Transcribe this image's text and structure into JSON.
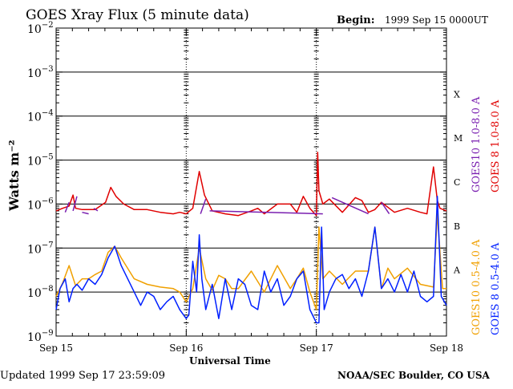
{
  "header": {
    "title": "GOES Xray Flux (5 minute data)",
    "begin_label": "Begin:",
    "begin_value": "1999 Sep 15 0000UT"
  },
  "footer": {
    "updated": "Updated 1999 Sep 17 23:59:09",
    "credit": "NOAA/SEC Boulder, CO USA"
  },
  "chart_data": {
    "type": "line",
    "title": "GOES Xray Flux (5 minute data)",
    "xlabel": "Universal Time",
    "ylabel": "Watts m⁻²",
    "yscale": "log",
    "ylim": [
      1e-09,
      0.01
    ],
    "xlim_days": [
      0,
      3
    ],
    "x_ticks": [
      "Sep 15",
      "Sep 16",
      "Sep 17",
      "Sep 18"
    ],
    "y_ticks": [
      {
        "base": "10",
        "exp": "−2"
      },
      {
        "base": "10",
        "exp": "−3"
      },
      {
        "base": "10",
        "exp": "−4"
      },
      {
        "base": "10",
        "exp": "−5"
      },
      {
        "base": "10",
        "exp": "−6"
      },
      {
        "base": "10",
        "exp": "−7"
      },
      {
        "base": "10",
        "exp": "−8"
      },
      {
        "base": "10",
        "exp": "−9"
      }
    ],
    "flare_classes": [
      "X",
      "M",
      "C",
      "B",
      "A"
    ],
    "grid": true,
    "colors": {
      "g10_long": "#7a1fb0",
      "g8_long": "#e00000",
      "g10_short": "#f0a000",
      "g8_short": "#0020ff"
    },
    "series": [
      {
        "name": "GOES10 1.0-8.0 A",
        "key": "g10_long",
        "x": [
          0.07,
          0.1,
          0.13,
          0.16,
          0.2,
          0.25,
          0.29,
          0.32,
          1.11,
          1.15,
          1.18,
          2.05,
          2.12,
          2.4,
          2.5,
          2.56
        ],
        "y": [
          6.5e-07,
          1.1e-06,
          7e-07,
          1.5e-06,
          6.5e-07,
          6e-07,
          8e-07,
          7e-07,
          6e-07,
          1.3e-06,
          7e-07,
          6e-07,
          1.4e-06,
          6e-07,
          1.1e-06,
          6e-07
        ]
      },
      {
        "name": "GOES 8 1.0-8.0 A",
        "key": "g8_long",
        "x": [
          0,
          0.05,
          0.1,
          0.13,
          0.15,
          0.2,
          0.3,
          0.38,
          0.42,
          0.46,
          0.52,
          0.6,
          0.7,
          0.8,
          0.9,
          0.95,
          1.0,
          1.05,
          1.1,
          1.14,
          1.2,
          1.3,
          1.4,
          1.5,
          1.55,
          1.6,
          1.7,
          1.8,
          1.85,
          1.9,
          1.95,
          2.0,
          2.01,
          2.02,
          2.05,
          2.1,
          2.2,
          2.3,
          2.35,
          2.4,
          2.45,
          2.5,
          2.6,
          2.7,
          2.8,
          2.85,
          2.9,
          2.93,
          2.95,
          3.0
        ],
        "y": [
          7e-07,
          8e-07,
          9e-07,
          1.6e-06,
          8e-07,
          7.5e-07,
          7.5e-07,
          1.1e-06,
          2.4e-06,
          1.5e-06,
          1e-06,
          7.5e-07,
          7.5e-07,
          6.5e-07,
          6e-07,
          6.5e-07,
          6e-07,
          8e-07,
          5.5e-06,
          1.6e-06,
          7e-07,
          6e-07,
          5.5e-07,
          7e-07,
          8e-07,
          6e-07,
          1e-06,
          1e-06,
          6.5e-07,
          1.5e-06,
          8e-07,
          5.5e-07,
          1.5e-05,
          2e-06,
          1e-06,
          1.3e-06,
          6.5e-07,
          1.4e-06,
          1.2e-06,
          6.5e-07,
          7.5e-07,
          1.1e-06,
          6.5e-07,
          8e-07,
          6.5e-07,
          6e-07,
          7e-06,
          1.2e-06,
          8e-07,
          7e-07
        ]
      },
      {
        "name": "GOES10 0.5-4.0 A",
        "key": "g10_short",
        "x": [
          0,
          0.05,
          0.1,
          0.15,
          0.2,
          0.25,
          0.3,
          0.35,
          0.4,
          0.45,
          0.5,
          0.6,
          0.7,
          0.8,
          0.9,
          0.95,
          1.0,
          1.05,
          1.1,
          1.15,
          1.2,
          1.25,
          1.3,
          1.35,
          1.4,
          1.5,
          1.6,
          1.7,
          1.8,
          1.85,
          1.9,
          1.95,
          2.0,
          2.02,
          2.05,
          2.1,
          2.2,
          2.3,
          2.4,
          2.45,
          2.5,
          2.55,
          2.6,
          2.7,
          2.8,
          2.9,
          2.93,
          2.97,
          3.0
        ],
        "y": [
          8e-09,
          1.6e-08,
          4e-08,
          1.4e-08,
          2e-08,
          2e-08,
          2.5e-08,
          3e-08,
          8e-08,
          1.1e-07,
          6e-08,
          2e-08,
          1.5e-08,
          1.3e-08,
          1.2e-08,
          1e-08,
          6e-09,
          1.2e-08,
          1e-07,
          2e-08,
          1.1e-08,
          2.4e-08,
          2e-08,
          1.2e-08,
          1.2e-08,
          3e-08,
          1e-08,
          4e-08,
          1.2e-08,
          2e-08,
          3.5e-08,
          1e-08,
          4e-09,
          3e-07,
          2e-08,
          3e-08,
          1.5e-08,
          3e-08,
          3e-08,
          3e-07,
          1.2e-08,
          3.5e-08,
          2e-08,
          3.5e-08,
          1.5e-08,
          1.3e-08,
          6e-07,
          1.2e-08,
          1.2e-08
        ]
      },
      {
        "name": "GOES 8 0.5-4.0 A",
        "key": "g8_short",
        "x": [
          0,
          0.03,
          0.07,
          0.1,
          0.13,
          0.16,
          0.2,
          0.25,
          0.3,
          0.35,
          0.4,
          0.45,
          0.5,
          0.55,
          0.6,
          0.65,
          0.7,
          0.75,
          0.8,
          0.85,
          0.9,
          0.95,
          1.0,
          1.02,
          1.05,
          1.08,
          1.1,
          1.12,
          1.15,
          1.2,
          1.25,
          1.3,
          1.35,
          1.4,
          1.45,
          1.5,
          1.55,
          1.6,
          1.65,
          1.7,
          1.75,
          1.8,
          1.85,
          1.9,
          1.95,
          2.0,
          2.02,
          2.04,
          2.06,
          2.1,
          2.15,
          2.2,
          2.25,
          2.3,
          2.35,
          2.4,
          2.45,
          2.5,
          2.55,
          2.6,
          2.65,
          2.7,
          2.75,
          2.8,
          2.85,
          2.9,
          2.93,
          2.96,
          3.0
        ],
        "y": [
          4e-09,
          1.2e-08,
          2e-08,
          6e-09,
          1.2e-08,
          1.5e-08,
          1.1e-08,
          2e-08,
          1.5e-08,
          2.5e-08,
          6e-08,
          1.1e-07,
          4e-08,
          2e-08,
          1e-08,
          5e-09,
          1e-08,
          8e-09,
          4e-09,
          6e-09,
          8e-09,
          4e-09,
          2.5e-09,
          3e-09,
          5e-08,
          1e-08,
          2e-07,
          2e-08,
          4e-09,
          1.5e-08,
          2.5e-09,
          2e-08,
          4e-09,
          2e-08,
          1.5e-08,
          5e-09,
          4e-09,
          3e-08,
          1e-08,
          2e-08,
          5e-09,
          8e-09,
          2e-08,
          3e-08,
          4e-09,
          2e-09,
          2e-09,
          3e-07,
          4e-09,
          1e-08,
          2e-08,
          2.5e-08,
          1.2e-08,
          2e-08,
          8e-09,
          3e-08,
          3e-07,
          1.2e-08,
          2e-08,
          1e-08,
          2.5e-08,
          1e-08,
          3e-08,
          8e-09,
          6e-09,
          8e-09,
          1.5e-06,
          8e-09,
          5e-09
        ]
      }
    ]
  }
}
